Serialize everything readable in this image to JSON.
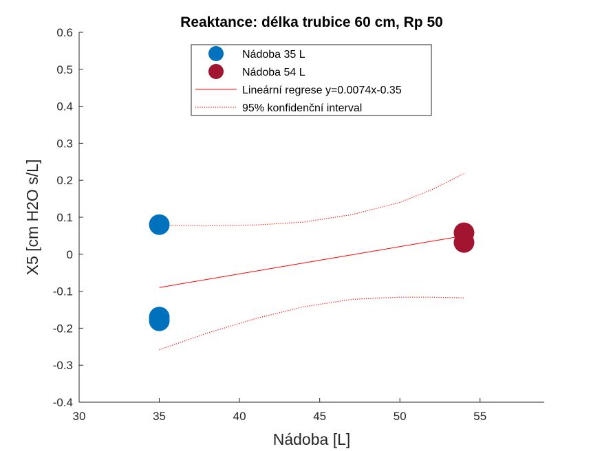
{
  "chart_data": {
    "type": "scatter",
    "title": "Reaktance: délka trubice 60 cm, Rp 50",
    "xlabel": "Nádoba [L]",
    "ylabel": "X5 [cm H2O s/L]",
    "xlim": [
      30,
      59
    ],
    "ylim": [
      -0.4,
      0.6
    ],
    "xticks": [
      30,
      35,
      40,
      45,
      50,
      55
    ],
    "xtick_labels": [
      "30",
      "35",
      "40",
      "45",
      "50",
      "55"
    ],
    "yticks": [
      -0.4,
      -0.3,
      -0.2,
      -0.1,
      0,
      0.1,
      0.2,
      0.3,
      0.4,
      0.5,
      0.6
    ],
    "ytick_labels": [
      "-0.4",
      "-0.3",
      "-0.2",
      "-0.1",
      "0",
      "0.1",
      "0.2",
      "0.3",
      "0.4",
      "0.5",
      "0.6"
    ],
    "grid": false,
    "legend_position": "top-center",
    "series": [
      {
        "name": "Nádoba 35 L",
        "kind": "scatter",
        "color": "#0072BD",
        "points": [
          [
            35,
            0.08
          ],
          [
            35,
            -0.17
          ],
          [
            35,
            -0.18
          ]
        ]
      },
      {
        "name": "Nádoba 54 L",
        "kind": "scatter",
        "color": "#A2142F",
        "points": [
          [
            54,
            0.058
          ],
          [
            54,
            0.032
          ]
        ]
      },
      {
        "name": "Lineární regrese y=0.0074x-0.35",
        "kind": "line",
        "color": "#FF0000",
        "style": "solid",
        "points": [
          [
            35,
            -0.09
          ],
          [
            54,
            0.05
          ]
        ]
      },
      {
        "name": "95% konfidenční interval",
        "kind": "line",
        "color": "#FF0000",
        "style": "dotted",
        "points": [
          [
            35,
            0.078
          ],
          [
            38,
            0.077
          ],
          [
            41,
            0.079
          ],
          [
            44,
            0.087
          ],
          [
            47,
            0.107
          ],
          [
            50,
            0.14
          ],
          [
            52,
            0.175
          ],
          [
            54,
            0.218
          ]
        ]
      },
      {
        "name": "",
        "kind": "line",
        "color": "#FF0000",
        "style": "dotted",
        "legend": false,
        "points": [
          [
            35,
            -0.258
          ],
          [
            38,
            -0.213
          ],
          [
            41,
            -0.174
          ],
          [
            44,
            -0.142
          ],
          [
            47,
            -0.122
          ],
          [
            50,
            -0.116
          ],
          [
            52,
            -0.116
          ],
          [
            54,
            -0.118
          ]
        ]
      }
    ]
  }
}
